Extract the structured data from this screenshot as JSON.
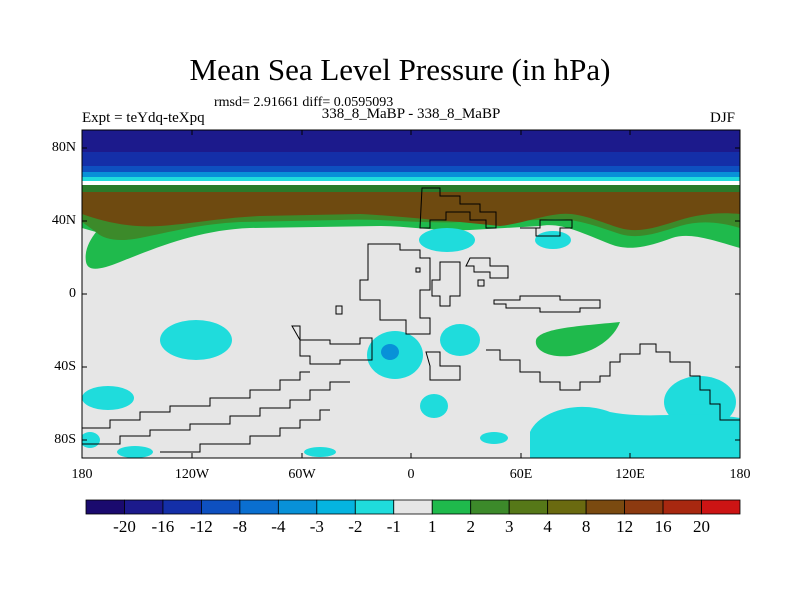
{
  "title": "Mean Sea Level Pressure (in hPa)",
  "stats": "rmsd= 2.91661 diff= 0.0595093",
  "experiment": "Expt = teYdq-teXpq",
  "case": "338_8_MaBP - 338_8_MaBP",
  "season": "DJF",
  "y_axis_labels": [
    "80N",
    "40N",
    "0",
    "40S",
    "80S"
  ],
  "x_axis_labels": [
    "180",
    "120W",
    "60W",
    "0",
    "60E",
    "120E",
    "180"
  ],
  "colorbar": {
    "labels": [
      "-20",
      "-16",
      "-12",
      "-8",
      "-4",
      "-3",
      "-2",
      "-1",
      "1",
      "2",
      "3",
      "4",
      "8",
      "12",
      "16",
      "20"
    ],
    "colors": [
      "#1a0a6e",
      "#1c1a8c",
      "#142fa8",
      "#0e50c0",
      "#0a6fd0",
      "#0891d8",
      "#05b4e0",
      "#1fdcdc",
      "#e6e6e6",
      "#1fba4c",
      "#3c8a2a",
      "#567818",
      "#6a6a10",
      "#7a4a10",
      "#8c3a10",
      "#a82810",
      "#cc1414"
    ]
  }
}
